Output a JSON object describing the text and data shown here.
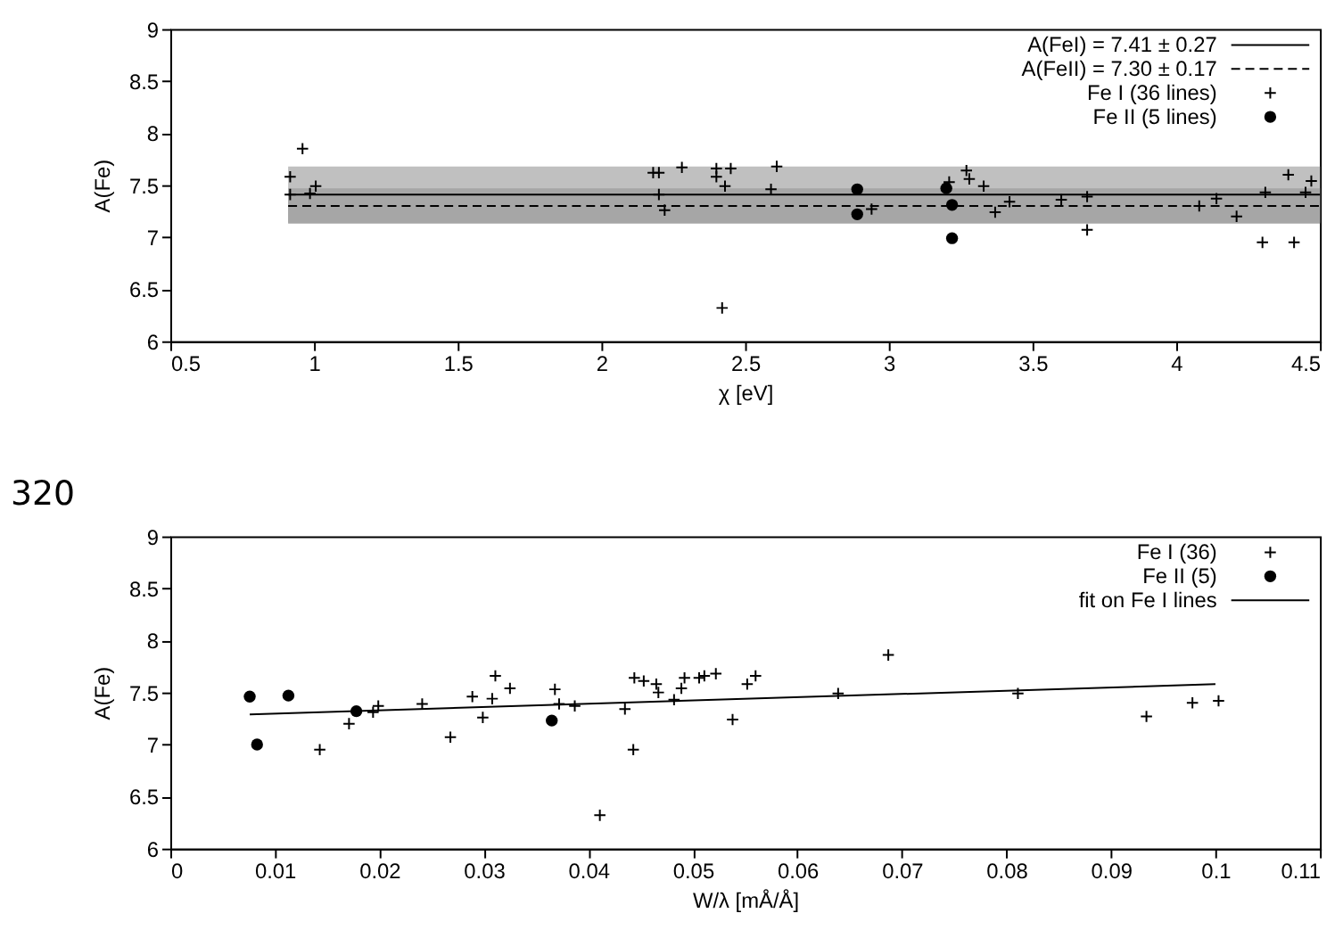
{
  "chart_data": [
    {
      "type": "scatter",
      "xlabel": "χ [eV]",
      "ylabel": "A(Fe)",
      "xlim": [
        0.5,
        4.5
      ],
      "ylim": [
        6,
        9
      ],
      "xticks": [
        0.5,
        1,
        1.5,
        2,
        2.5,
        3,
        3.5,
        4,
        4.5
      ],
      "yticks": [
        6,
        6.5,
        7,
        7.5,
        8,
        8.5,
        9
      ],
      "grid": false,
      "legend": "top right",
      "series": [
        {
          "name": "A(FeI) =  7.41 ±  0.27",
          "type": "line",
          "line_style": "solid",
          "color": "#000000",
          "x": [
            0.91,
            4.5
          ],
          "values": [
            7.41,
            7.41
          ],
          "lower": [
            7.14,
            7.14
          ],
          "upper": [
            7.68,
            7.68
          ]
        },
        {
          "name": "A(FeII) =  7.30 ±  0.17",
          "type": "line",
          "line_style": "dashed",
          "color": "#000000",
          "x": [
            0.91,
            4.5
          ],
          "values": [
            7.3,
            7.3
          ],
          "lower": [
            7.13,
            7.13
          ],
          "upper": [
            7.47,
            7.47
          ]
        },
        {
          "name": "Fe I (36 lines)",
          "marker": "cross",
          "color": "#000000",
          "x": [
            0.917,
            0.96,
            0.917,
            0.986,
            1.006,
            2.18,
            2.2,
            2.2,
            2.22,
            2.28,
            2.4,
            2.4,
            2.45,
            2.43,
            2.42,
            2.59,
            2.61,
            2.94,
            3.21,
            3.27,
            3.28,
            3.33,
            3.37,
            3.42,
            3.6,
            3.69,
            3.69,
            4.08,
            4.14,
            4.21,
            4.31,
            4.3,
            4.41,
            4.39,
            4.45,
            4.47
          ],
          "values": [
            7.58,
            7.85,
            7.41,
            7.42,
            7.49,
            7.62,
            7.62,
            7.41,
            7.26,
            7.67,
            7.66,
            7.58,
            7.66,
            7.49,
            6.32,
            7.46,
            7.68,
            7.27,
            7.53,
            7.64,
            7.56,
            7.49,
            7.24,
            7.34,
            7.36,
            7.39,
            7.07,
            7.3,
            7.37,
            7.2,
            7.43,
            6.95,
            6.95,
            7.6,
            7.43,
            7.54
          ]
        },
        {
          "name": "Fe II (5 lines)",
          "marker": "circle",
          "color": "#000000",
          "x": [
            2.89,
            2.89,
            3.2,
            3.22,
            3.22
          ],
          "values": [
            7.46,
            7.22,
            7.47,
            7.31,
            6.99
          ]
        }
      ]
    },
    {
      "type": "scatter",
      "xlabel": "W/λ [mÅ/Å]",
      "ylabel": "A(Fe)",
      "xlim": [
        0,
        0.11
      ],
      "ylim": [
        6,
        9
      ],
      "xticks": [
        0,
        0.01,
        0.02,
        0.03,
        0.04,
        0.05,
        0.06,
        0.07,
        0.08,
        0.09,
        0.1,
        0.11
      ],
      "yticks": [
        6,
        6.5,
        7,
        7.5,
        8,
        8.5,
        9
      ],
      "grid": false,
      "legend": "top right",
      "annotations": [
        "320"
      ],
      "series": [
        {
          "name": "Fe I (36)",
          "marker": "cross",
          "color": "#000000",
          "x": [
            0.0143,
            0.0171,
            0.0194,
            0.0199,
            0.0241,
            0.0268,
            0.0289,
            0.0299,
            0.0308,
            0.0311,
            0.0325,
            0.0368,
            0.0372,
            0.0387,
            0.0411,
            0.0435,
            0.0443,
            0.0444,
            0.0453,
            0.0465,
            0.0467,
            0.0482,
            0.0489,
            0.0492,
            0.0506,
            0.0511,
            0.0522,
            0.0538,
            0.0552,
            0.056,
            0.0639,
            0.0687,
            0.0811,
            0.0934,
            0.0978,
            0.1003
          ],
          "values": [
            6.95,
            7.2,
            7.31,
            7.37,
            7.39,
            7.07,
            7.46,
            7.26,
            7.44,
            7.66,
            7.54,
            7.53,
            7.39,
            7.37,
            6.32,
            7.34,
            6.95,
            7.64,
            7.61,
            7.58,
            7.5,
            7.43,
            7.54,
            7.64,
            7.64,
            7.66,
            7.68,
            7.24,
            7.58,
            7.66,
            7.49,
            7.86,
            7.49,
            7.27,
            7.4,
            7.42
          ]
        },
        {
          "name": "Fe II (5)",
          "marker": "circle",
          "color": "#000000",
          "x": [
            0.0076,
            0.0083,
            0.0113,
            0.0178,
            0.0365
          ],
          "values": [
            7.46,
            7.0,
            7.47,
            7.32,
            7.23
          ]
        },
        {
          "name": "fit on Fe I lines",
          "type": "line",
          "line_style": "solid",
          "color": "#000000",
          "x": [
            0.0076,
            0.1
          ],
          "values": [
            7.29,
            7.58
          ]
        }
      ]
    }
  ]
}
